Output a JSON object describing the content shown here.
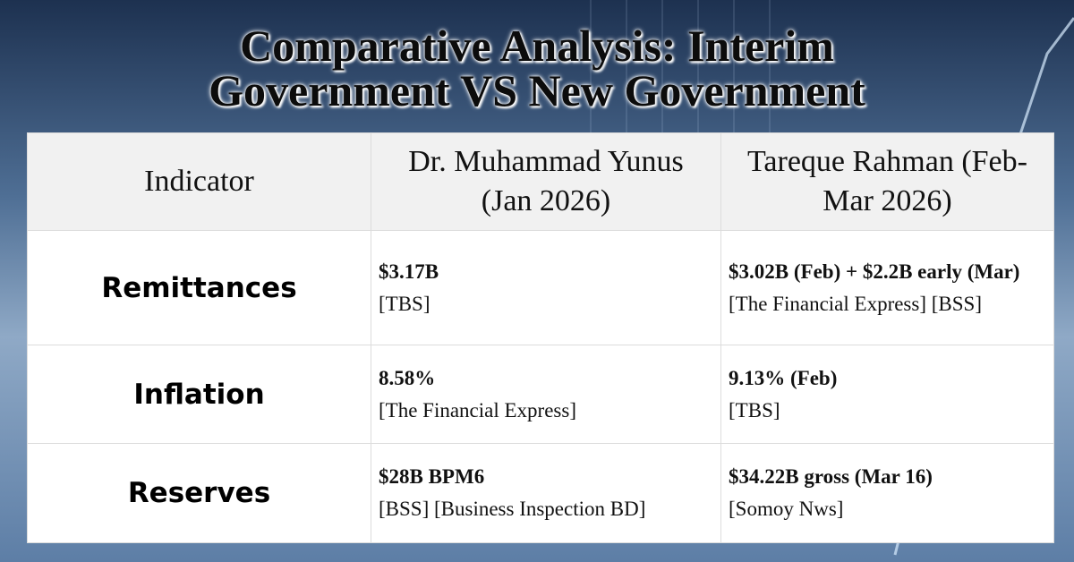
{
  "title": {
    "lines": [
      "Comparative Analysis: Interim",
      "Government VS New Government"
    ]
  },
  "table": {
    "header": [
      "Indicator",
      "Dr. Muhammad Yunus (Jan 2026)",
      "Tareque Rahman (Feb-Mar 2026)"
    ],
    "rows": [
      {
        "indicator": "Remittances",
        "cells": [
          {
            "value": "$3.17B",
            "source": "[TBS]"
          },
          {
            "value": "$3.02B (Feb) + $2.2B early (Mar)",
            "source": "[The Financial Express] [BSS]"
          }
        ]
      },
      {
        "indicator": "Inflation",
        "cells": [
          {
            "value": "8.58%",
            "source": "[The Financial Express]"
          },
          {
            "value": "9.13% (Feb)",
            "source": "[TBS]"
          }
        ]
      },
      {
        "indicator": "Reserves",
        "cells": [
          {
            "value": "$28B BPM6",
            "source": "[BSS] [Business Inspection BD]"
          },
          {
            "value": "$34.22B gross (Mar 16)",
            "source": "[Somoy Nws]"
          }
        ]
      }
    ]
  }
}
